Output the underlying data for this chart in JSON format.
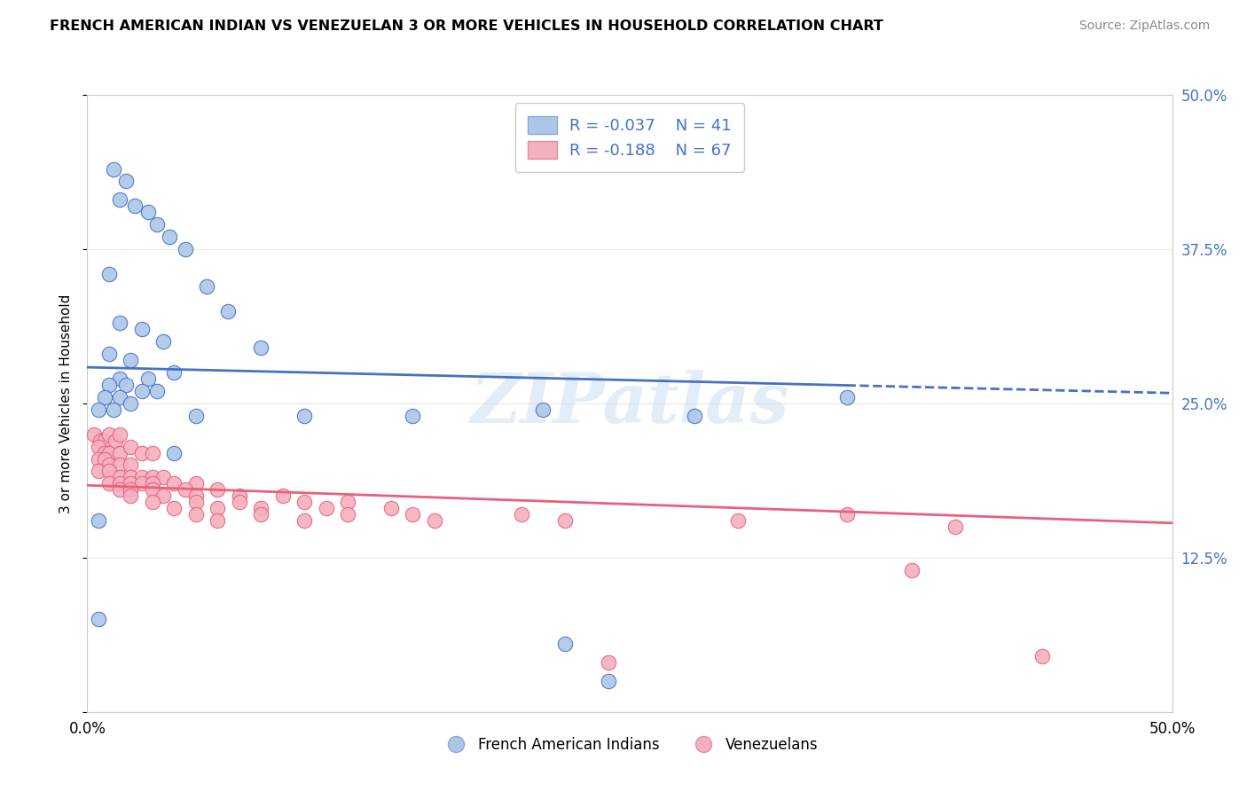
{
  "title": "FRENCH AMERICAN INDIAN VS VENEZUELAN 3 OR MORE VEHICLES IN HOUSEHOLD CORRELATION CHART",
  "source": "Source: ZipAtlas.com",
  "ylabel": "3 or more Vehicles in Household",
  "xlim": [
    0.0,
    50.0
  ],
  "ylim": [
    0.0,
    50.0
  ],
  "blue_R": -0.037,
  "blue_N": 41,
  "pink_R": -0.188,
  "pink_N": 67,
  "blue_color": "#adc6e8",
  "pink_color": "#f5b0bf",
  "blue_line_color": "#4472c4",
  "pink_line_color": "#e8607a",
  "blue_scatter": [
    [
      1.2,
      44.0
    ],
    [
      1.8,
      43.0
    ],
    [
      1.5,
      41.5
    ],
    [
      2.2,
      41.0
    ],
    [
      2.8,
      40.5
    ],
    [
      3.2,
      39.5
    ],
    [
      3.8,
      38.5
    ],
    [
      4.5,
      37.5
    ],
    [
      1.0,
      35.5
    ],
    [
      5.5,
      34.5
    ],
    [
      6.5,
      32.5
    ],
    [
      1.5,
      31.5
    ],
    [
      2.5,
      31.0
    ],
    [
      3.5,
      30.0
    ],
    [
      8.0,
      29.5
    ],
    [
      1.0,
      29.0
    ],
    [
      2.0,
      28.5
    ],
    [
      4.0,
      27.5
    ],
    [
      1.5,
      27.0
    ],
    [
      2.8,
      27.0
    ],
    [
      1.0,
      26.5
    ],
    [
      1.8,
      26.5
    ],
    [
      2.5,
      26.0
    ],
    [
      3.2,
      26.0
    ],
    [
      0.8,
      25.5
    ],
    [
      1.5,
      25.5
    ],
    [
      2.0,
      25.0
    ],
    [
      0.5,
      24.5
    ],
    [
      1.2,
      24.5
    ],
    [
      5.0,
      24.0
    ],
    [
      10.0,
      24.0
    ],
    [
      15.0,
      24.0
    ],
    [
      21.0,
      24.5
    ],
    [
      28.0,
      24.0
    ],
    [
      35.0,
      25.5
    ],
    [
      0.5,
      7.5
    ],
    [
      22.0,
      5.5
    ],
    [
      24.0,
      2.5
    ],
    [
      0.5,
      15.5
    ],
    [
      2.0,
      18.0
    ],
    [
      4.0,
      21.0
    ]
  ],
  "pink_scatter": [
    [
      0.3,
      22.5
    ],
    [
      0.6,
      22.0
    ],
    [
      0.8,
      22.0
    ],
    [
      1.0,
      22.5
    ],
    [
      1.3,
      22.0
    ],
    [
      1.5,
      22.5
    ],
    [
      0.5,
      21.5
    ],
    [
      0.8,
      21.0
    ],
    [
      1.0,
      21.0
    ],
    [
      1.5,
      21.0
    ],
    [
      2.0,
      21.5
    ],
    [
      2.5,
      21.0
    ],
    [
      3.0,
      21.0
    ],
    [
      0.5,
      20.5
    ],
    [
      0.8,
      20.5
    ],
    [
      1.0,
      20.0
    ],
    [
      1.5,
      20.0
    ],
    [
      2.0,
      20.0
    ],
    [
      0.5,
      19.5
    ],
    [
      1.0,
      19.5
    ],
    [
      1.5,
      19.0
    ],
    [
      2.0,
      19.0
    ],
    [
      2.5,
      19.0
    ],
    [
      3.0,
      19.0
    ],
    [
      3.5,
      19.0
    ],
    [
      1.0,
      18.5
    ],
    [
      1.5,
      18.5
    ],
    [
      2.0,
      18.5
    ],
    [
      2.5,
      18.5
    ],
    [
      3.0,
      18.5
    ],
    [
      4.0,
      18.5
    ],
    [
      5.0,
      18.5
    ],
    [
      1.5,
      18.0
    ],
    [
      2.0,
      18.0
    ],
    [
      3.0,
      18.0
    ],
    [
      4.5,
      18.0
    ],
    [
      6.0,
      18.0
    ],
    [
      2.0,
      17.5
    ],
    [
      3.5,
      17.5
    ],
    [
      5.0,
      17.5
    ],
    [
      7.0,
      17.5
    ],
    [
      9.0,
      17.5
    ],
    [
      3.0,
      17.0
    ],
    [
      5.0,
      17.0
    ],
    [
      7.0,
      17.0
    ],
    [
      10.0,
      17.0
    ],
    [
      12.0,
      17.0
    ],
    [
      4.0,
      16.5
    ],
    [
      6.0,
      16.5
    ],
    [
      8.0,
      16.5
    ],
    [
      11.0,
      16.5
    ],
    [
      14.0,
      16.5
    ],
    [
      5.0,
      16.0
    ],
    [
      8.0,
      16.0
    ],
    [
      12.0,
      16.0
    ],
    [
      15.0,
      16.0
    ],
    [
      20.0,
      16.0
    ],
    [
      6.0,
      15.5
    ],
    [
      10.0,
      15.5
    ],
    [
      16.0,
      15.5
    ],
    [
      22.0,
      15.5
    ],
    [
      30.0,
      15.5
    ],
    [
      35.0,
      16.0
    ],
    [
      40.0,
      15.0
    ],
    [
      38.0,
      11.5
    ],
    [
      44.0,
      4.5
    ],
    [
      24.0,
      4.0
    ]
  ],
  "blue_legend_color": "#adc6e8",
  "pink_legend_color": "#f5b0bf",
  "legend_label_blue": "French American Indians",
  "legend_label_pink": "Venezuelans",
  "watermark": "ZIPatlas",
  "background_color": "#ffffff",
  "grid_color": "#e8e8e8"
}
